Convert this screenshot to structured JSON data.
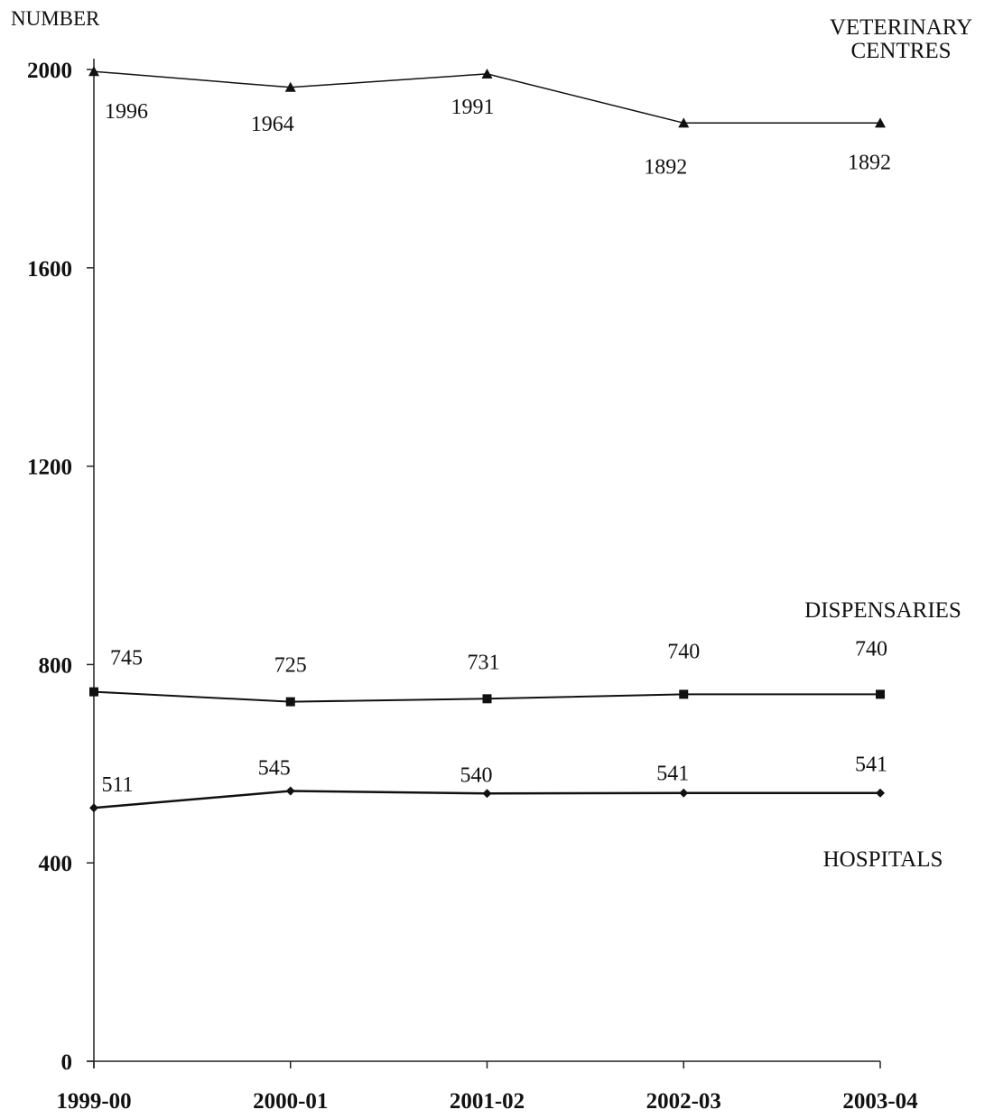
{
  "chart_data": {
    "type": "line",
    "ylabel": "NUMBER",
    "xlabel": "",
    "categories": [
      "1999-00",
      "2000-01",
      "2001-02",
      "2002-03",
      "2003-04"
    ],
    "ylim": [
      0,
      2000
    ],
    "yticks": [
      0,
      400,
      800,
      1200,
      1600,
      2000
    ],
    "grid": false,
    "series": [
      {
        "name": "VETERINARY CENTRES",
        "values": [
          1996,
          1964,
          1991,
          1892,
          1892
        ],
        "marker": "triangle",
        "color": "#111111"
      },
      {
        "name": "DISPENSARIES",
        "values": [
          745,
          725,
          731,
          740,
          740
        ],
        "marker": "square",
        "color": "#111111"
      },
      {
        "name": "HOSPITALS",
        "values": [
          511,
          545,
          540,
          541,
          541
        ],
        "marker": "diamond",
        "color": "#111111"
      }
    ]
  }
}
